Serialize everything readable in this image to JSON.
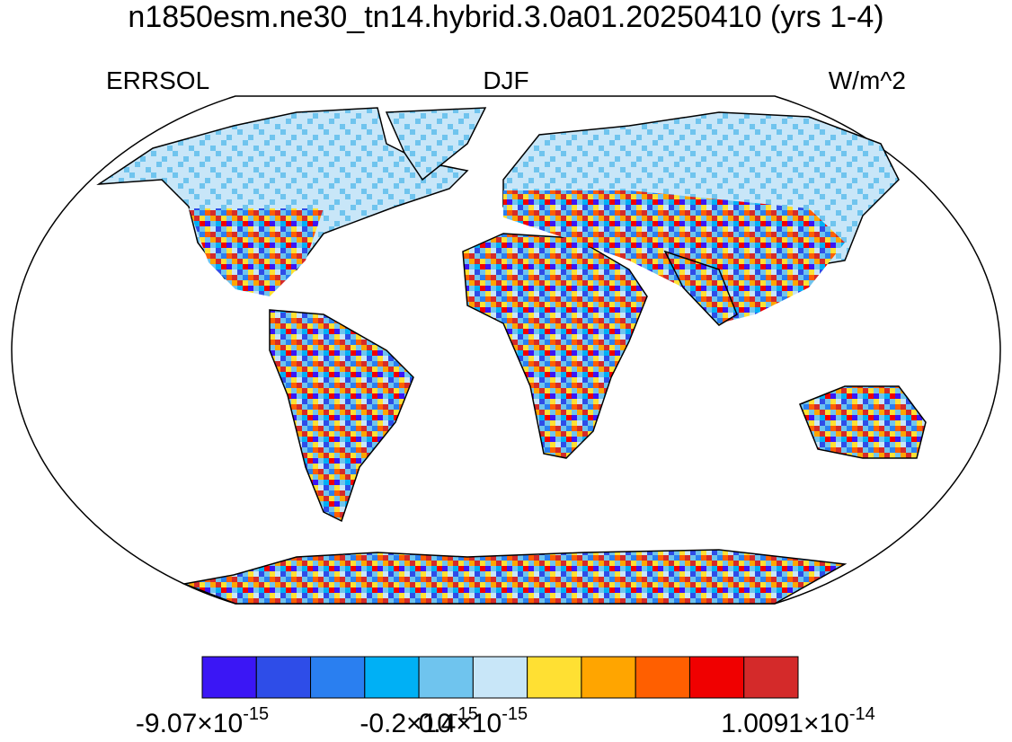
{
  "header": {
    "title": "n1850esm.ne30_tn14.hybrid.3.0a01.20250410 (yrs 1-4)",
    "left": "ERRSOL",
    "center": "DJF",
    "right": "W/m^2"
  },
  "colorbar": {
    "colors": [
      "#3b16f5",
      "#2e4de8",
      "#2a7ff0",
      "#00b0f5",
      "#6fc4ee",
      "#c8e6f8",
      "#ffe033",
      "#ffa500",
      "#ff5f00",
      "#f00000",
      "#d42a2a"
    ],
    "labels": [
      {
        "base": "-9.07×10",
        "exponent": "-15"
      },
      null,
      null,
      null,
      {
        "base": "-0.2×10",
        "exponent": "-15"
      },
      {
        "base": "0.4×10",
        "exponent": "-15"
      },
      null,
      null,
      null,
      null,
      null,
      {
        "base": "1.0091×10",
        "exponent": "-14"
      }
    ]
  }
}
